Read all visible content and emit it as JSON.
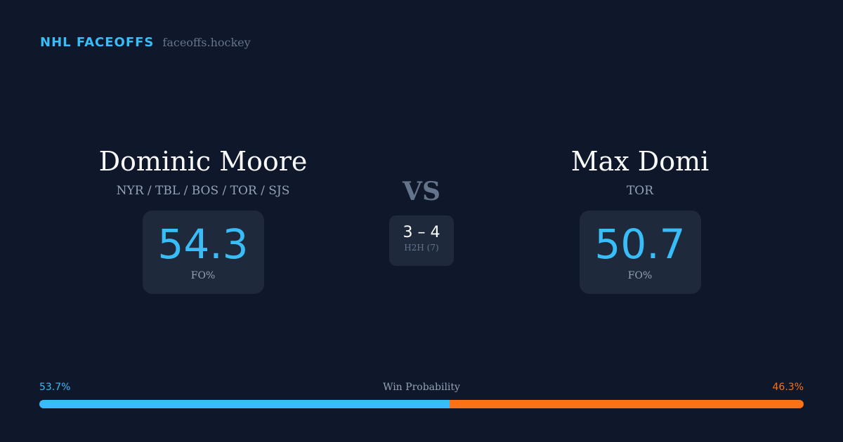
{
  "brand": {
    "title": "NHL FACEOFFS",
    "domain": "faceoffs.hockey"
  },
  "left": {
    "name": "Dominic Moore",
    "teams": "NYR / TBL / BOS / TOR / SJS",
    "fo_value": "54.3",
    "fo_label": "FO%"
  },
  "right": {
    "name": "Max Domi",
    "teams": "TOR",
    "fo_value": "50.7",
    "fo_label": "FO%"
  },
  "vs": "VS",
  "h2h": {
    "score": "3 – 4",
    "label": "H2H (7)"
  },
  "win_probability": {
    "label": "Win Probability",
    "left": "53.7%",
    "right": "46.3%",
    "left_fraction": 0.537,
    "left_color": "#38bdf8",
    "right_color": "#f97316"
  }
}
